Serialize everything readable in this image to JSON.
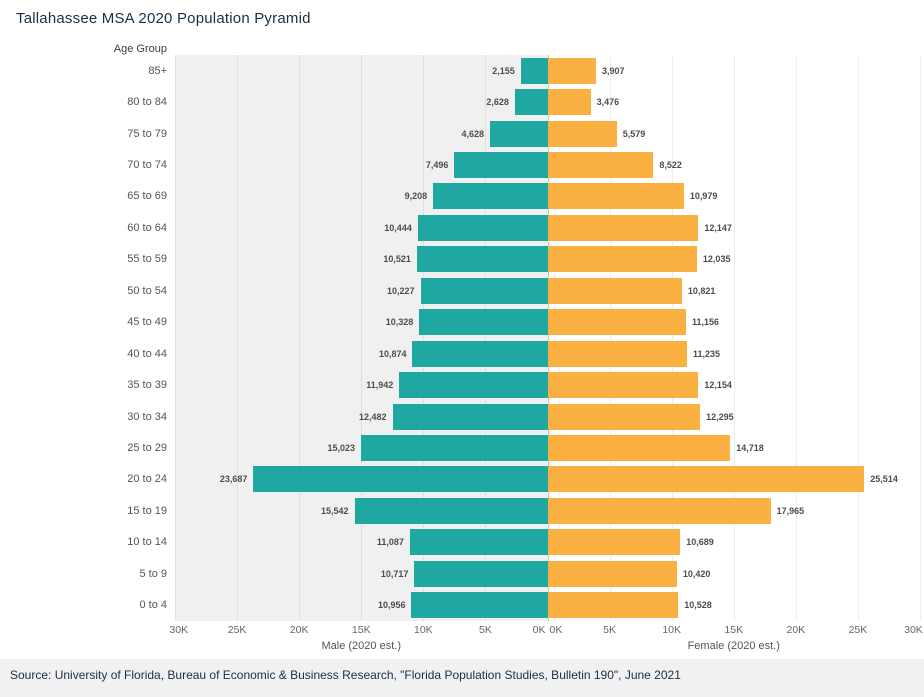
{
  "title": "Tallahassee MSA 2020 Population Pyramid",
  "source": "Source: University of Florida, Bureau of Economic & Business Research, \"Florida Population Studies, Bulletin 190\", June 2021",
  "chart_data": {
    "type": "bar",
    "variant": "population-pyramid",
    "title": "Tallahassee MSA 2020 Population Pyramid",
    "ylabel": "Age Group",
    "xlabel_left": "Male (2020 est.)",
    "xlabel_right": "Female (2020 est.)",
    "categories": [
      "85+",
      "80 to 84",
      "75 to 79",
      "70 to 74",
      "65 to 69",
      "60 to 64",
      "55 to 59",
      "50 to 54",
      "45 to 49",
      "40 to 44",
      "35 to 39",
      "30 to 34",
      "25 to 29",
      "20 to 24",
      "15 to 19",
      "10 to 14",
      "5 to 9",
      "0 to 4"
    ],
    "series": [
      {
        "name": "Male (2020 est.)",
        "side": "left",
        "color": "#1FA8A2",
        "values": [
          2155,
          2628,
          4628,
          7496,
          9208,
          10444,
          10521,
          10227,
          10328,
          10874,
          11942,
          12482,
          15023,
          23687,
          15542,
          11087,
          10717,
          10956
        ]
      },
      {
        "name": "Female (2020 est.)",
        "side": "right",
        "color": "#FBB042",
        "values": [
          3907,
          3476,
          5579,
          8522,
          10979,
          12147,
          12035,
          10821,
          11156,
          11235,
          12154,
          12295,
          14718,
          25514,
          17965,
          10689,
          10420,
          10528
        ]
      }
    ],
    "x_ticks_left": [
      "30K",
      "25K",
      "20K",
      "15K",
      "10K",
      "5K",
      "0K"
    ],
    "x_ticks_right": [
      "0K",
      "5K",
      "10K",
      "15K",
      "20K",
      "25K",
      "30K"
    ],
    "xlim": [
      0,
      30000
    ],
    "grid": true,
    "legend": "none"
  }
}
